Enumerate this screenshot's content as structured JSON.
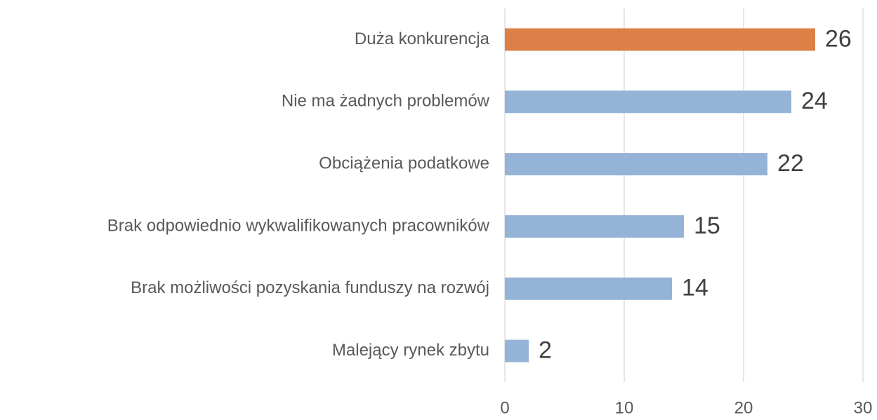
{
  "chart_data": {
    "type": "hbar",
    "categories": [
      "Duża konkurencja",
      "Nie ma żadnych problemów",
      "Obciążenia podatkowe",
      "Brak odpowiednio wykwalifikowanych pracowników",
      "Brak możliwości pozyskania funduszy na rozwój",
      "Malejący rynek zbytu"
    ],
    "values": [
      26,
      24,
      22,
      15,
      14,
      2
    ],
    "colors": [
      "#dd8047",
      "#95b3d7",
      "#95b3d7",
      "#95b3d7",
      "#95b3d7",
      "#95b3d7"
    ],
    "xlim": [
      0,
      30
    ],
    "xticks": [
      0,
      10,
      20,
      30
    ],
    "grid": true
  }
}
